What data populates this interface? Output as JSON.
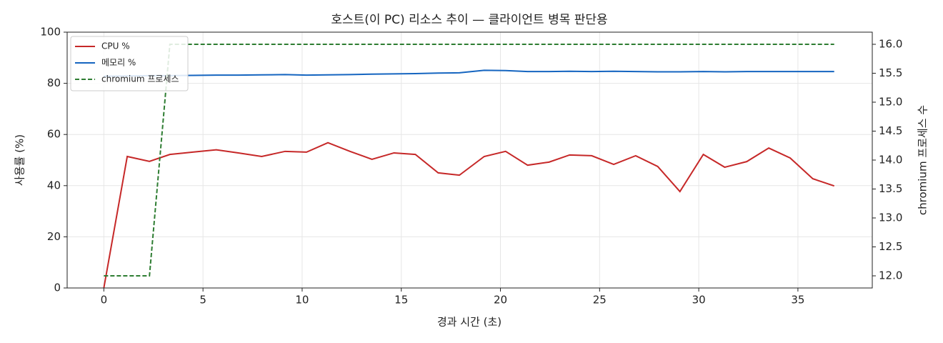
{
  "chart_data": {
    "type": "line",
    "title": "호스트(이 PC) 리소스 추이 — 클라이언트 병목 판단용",
    "x_label": "경과 시간 (초)",
    "y_label": "사용률 (%)",
    "y2_label": "chromium 프로세스 수",
    "x": [
      0,
      1.18,
      2.3,
      3.33,
      4.48,
      5.67,
      6.78,
      7.96,
      9.14,
      10.22,
      11.3,
      12.41,
      13.52,
      14.63,
      15.71,
      16.86,
      17.93,
      19.18,
      20.26,
      21.37,
      22.45,
      23.49,
      24.6,
      25.71,
      26.82,
      27.93,
      29.05,
      30.23,
      31.31,
      32.42,
      33.53,
      34.61,
      35.75,
      36.83
    ],
    "series": [
      {
        "name": "CPU %",
        "color": "#c62828",
        "dash": false,
        "values": [
          0,
          51.4,
          49.5,
          52.2,
          53.1,
          54.0,
          52.8,
          51.4,
          53.4,
          53.1,
          56.8,
          53.4,
          50.3,
          52.8,
          52.2,
          45.0,
          44.1,
          51.4,
          53.4,
          48.0,
          49.2,
          52.0,
          51.7,
          48.3,
          51.7,
          47.5,
          37.7,
          52.2,
          47.2,
          49.4,
          54.7,
          50.8,
          42.7,
          39.9
        ]
      },
      {
        "name": "메모리 %",
        "color": "#1565c0",
        "dash": false,
        "values": [
          82.8,
          82.9,
          83.0,
          83.0,
          83.1,
          83.2,
          83.2,
          83.3,
          83.4,
          83.2,
          83.3,
          83.4,
          83.6,
          83.7,
          83.8,
          84.0,
          84.1,
          85.1,
          85.0,
          84.6,
          84.6,
          84.7,
          84.6,
          84.7,
          84.6,
          84.5,
          84.5,
          84.6,
          84.5,
          84.6,
          84.6,
          84.6,
          84.6,
          84.6
        ]
      },
      {
        "name": "chromium 프로세스",
        "color": "#2e7d32",
        "dash": true,
        "axis": "y2",
        "values": [
          12,
          12,
          12,
          16,
          16,
          16,
          16,
          16,
          16,
          16,
          16,
          16,
          16,
          16,
          16,
          16,
          16,
          16,
          16,
          16,
          16,
          16,
          16,
          16,
          16,
          16,
          16,
          16,
          16,
          16,
          16,
          16,
          16,
          16
        ]
      }
    ],
    "xlim": [
      -1.85,
      38.75
    ],
    "xticks": [
      0,
      5,
      10,
      15,
      20,
      25,
      30,
      35
    ],
    "ylim": [
      0,
      100
    ],
    "yticks": [
      0,
      20,
      40,
      60,
      80,
      100
    ],
    "y2lim": [
      11.79,
      16.21
    ],
    "y2ticks": [
      {
        "value": 12,
        "label": "12.0"
      },
      12.5,
      {
        "value": 13,
        "label": "13.0"
      },
      13.5,
      {
        "value": 14,
        "label": "14.0"
      },
      14.5,
      {
        "value": 15,
        "label": "15.0"
      },
      15.5,
      {
        "value": 16,
        "label": "16.0"
      }
    ],
    "grid": true,
    "legend": "upper-left"
  }
}
